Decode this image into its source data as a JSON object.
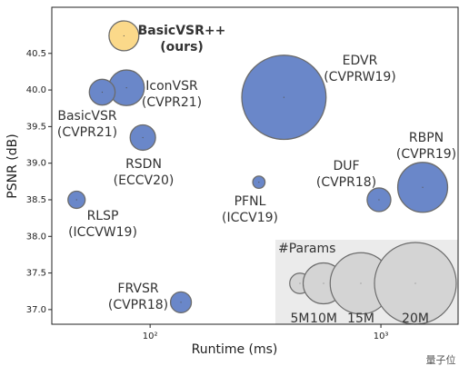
{
  "chart_data": {
    "type": "bubble",
    "x_label": "Runtime (ms)",
    "y_label": "PSNR (dB)",
    "log_x": true,
    "xlim": [
      37.5,
      2160
    ],
    "ylim": [
      36.8,
      41.13
    ],
    "xticks": [
      {
        "value": 100,
        "label": "10²"
      },
      {
        "value": 1000,
        "label": "10³"
      }
    ],
    "yticks": [
      {
        "value": 37,
        "label": "37.0"
      },
      37.5,
      {
        "value": 38,
        "label": "38.0"
      },
      38.5,
      {
        "value": 39,
        "label": "39.0"
      },
      39.5,
      {
        "value": 40,
        "label": "40.0"
      },
      40.5
    ],
    "edge_color": "#6b6b6b",
    "points": [
      {
        "name": "BasicVSR++",
        "venue": "(ours)",
        "x": 77,
        "y": 40.74,
        "size": 7.3,
        "color": "#fbd98a"
      },
      {
        "name": "IconVSR",
        "venue": "(CVPR21)",
        "x": 79,
        "y": 40.03,
        "size": 8.7,
        "color": "#6a87c9"
      },
      {
        "name": "BasicVSR",
        "venue": "(CVPR21)",
        "x": 62,
        "y": 39.97,
        "size": 6.3,
        "color": "#6a87c9"
      },
      {
        "name": "EDVR",
        "venue": "(CVPRW19)",
        "x": 380,
        "y": 39.9,
        "size": 20.6,
        "color": "#6a87c9"
      },
      {
        "name": "RSDN",
        "venue": "(ECCV20)",
        "x": 93,
        "y": 39.35,
        "size": 6.2,
        "color": "#6a87c9"
      },
      {
        "name": "PFNL",
        "venue": "(ICCV19)",
        "x": 296,
        "y": 38.74,
        "size": 3.0,
        "color": "#6a87c9"
      },
      {
        "name": "DUF",
        "venue": "(CVPR18)",
        "x": 981,
        "y": 38.5,
        "size": 5.8,
        "color": "#6a87c9"
      },
      {
        "name": "RBPN",
        "venue": "(CVPR19)",
        "x": 1517,
        "y": 38.67,
        "size": 12.2,
        "color": "#6a87c9"
      },
      {
        "name": "RLSP",
        "venue": "(ICCVW19)",
        "x": 48,
        "y": 38.5,
        "size": 4.2,
        "color": "#6a87c9"
      },
      {
        "name": "FRVSR",
        "venue": "(CVPR18)",
        "x": 136,
        "y": 37.1,
        "size": 5.1,
        "color": "#6a87c9"
      }
    ],
    "size_legend": {
      "title": "#Params",
      "color": "#d4d4d4",
      "background": "#ebebeb",
      "sizes": [
        {
          "value": 5,
          "label": "5M"
        },
        {
          "value": 10,
          "label": "10M"
        },
        {
          "value": 15,
          "label": "15M"
        },
        {
          "value": 20,
          "label": "20M"
        }
      ]
    },
    "watermark": "量子位"
  }
}
